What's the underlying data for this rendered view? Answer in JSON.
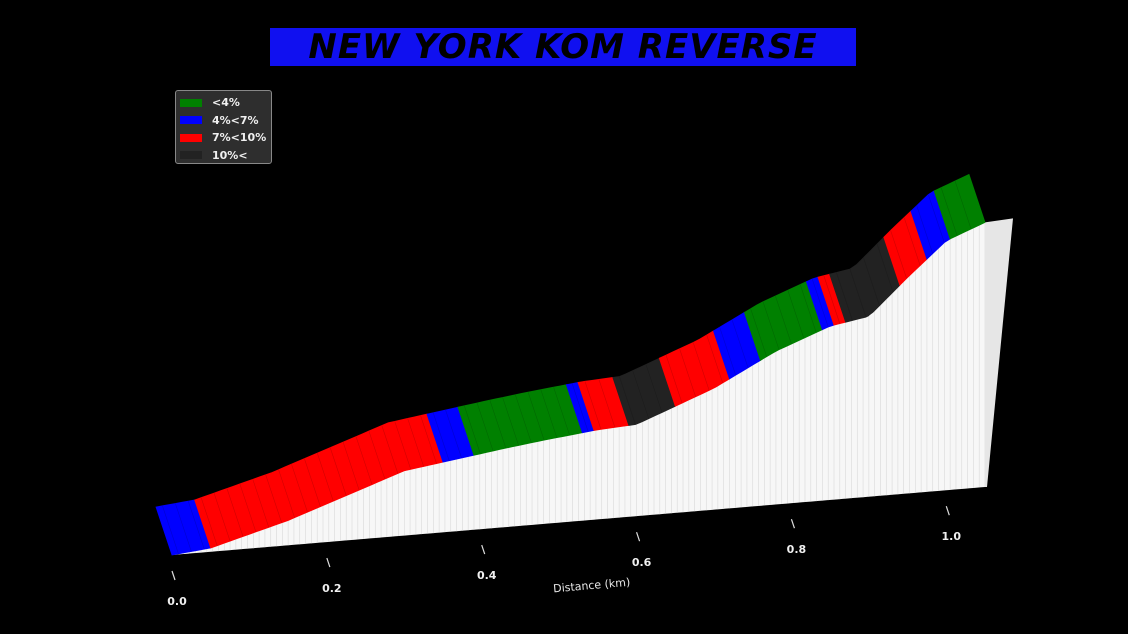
{
  "title": "NEW YORK KOM REVERSE",
  "chart_data": {
    "type": "area",
    "xlabel": "Distance (km)",
    "ylabel": "",
    "xlim": [
      0.0,
      1.1
    ],
    "xticks": [
      "0.0",
      "0.2",
      "0.4",
      "0.6",
      "0.8",
      "1.0"
    ],
    "legend_placement": "top-left",
    "legend": [
      {
        "label": "<4%",
        "color": "#008000"
      },
      {
        "label": "4%<7%",
        "color": "#0000ff"
      },
      {
        "label": "7%<10%",
        "color": "#ff0000"
      },
      {
        "label": "10%<",
        "color": "#222222"
      }
    ],
    "profile": {
      "x": [
        0.0,
        0.05,
        0.15,
        0.3,
        0.43,
        0.48,
        0.55,
        0.6,
        0.7,
        0.78,
        0.85,
        0.9,
        0.95,
        1.0,
        1.05
      ],
      "y": [
        0.0,
        0.7,
        4.6,
        12.0,
        14.6,
        15.5,
        16.6,
        17.0,
        22.5,
        28.4,
        32.2,
        33.4,
        40.0,
        46.2,
        49.0
      ]
    },
    "segments": [
      {
        "from": 0.0,
        "to": 0.05,
        "class": "4%<7%"
      },
      {
        "from": 0.05,
        "to": 0.35,
        "class": "7%<10%"
      },
      {
        "from": 0.35,
        "to": 0.39,
        "class": "4%<7%"
      },
      {
        "from": 0.39,
        "to": 0.53,
        "class": "<4%"
      },
      {
        "from": 0.53,
        "to": 0.545,
        "class": "4%<7%"
      },
      {
        "from": 0.545,
        "to": 0.59,
        "class": "7%<10%"
      },
      {
        "from": 0.59,
        "to": 0.65,
        "class": "10%<"
      },
      {
        "from": 0.65,
        "to": 0.72,
        "class": "7%<10%"
      },
      {
        "from": 0.72,
        "to": 0.76,
        "class": "4%<7%"
      },
      {
        "from": 0.76,
        "to": 0.84,
        "class": "<4%"
      },
      {
        "from": 0.84,
        "to": 0.855,
        "class": "4%<7%"
      },
      {
        "from": 0.855,
        "to": 0.87,
        "class": "7%<10%"
      },
      {
        "from": 0.87,
        "to": 0.94,
        "class": "10%<"
      },
      {
        "from": 0.94,
        "to": 0.975,
        "class": "7%<10%"
      },
      {
        "from": 0.975,
        "to": 1.005,
        "class": "4%<7%"
      },
      {
        "from": 1.005,
        "to": 1.05,
        "class": "<4%"
      }
    ]
  }
}
